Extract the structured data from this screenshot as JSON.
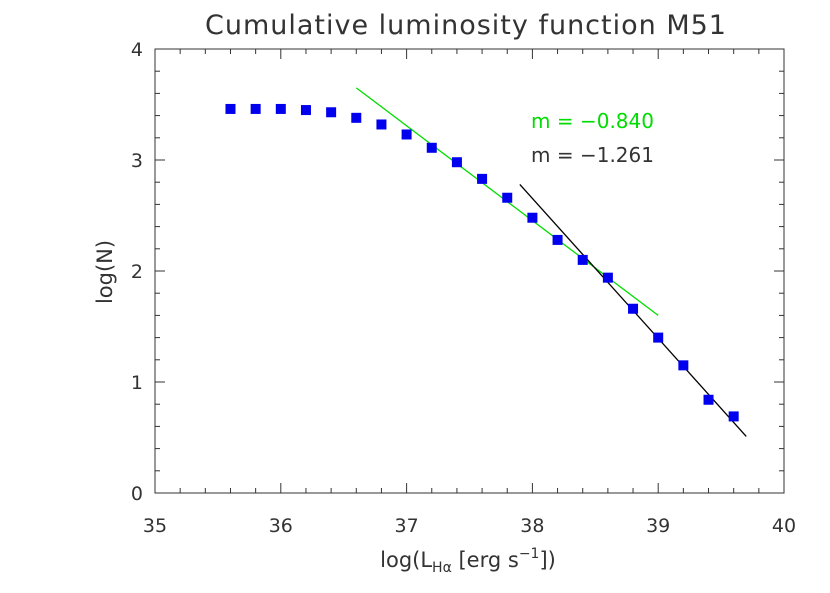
{
  "chart_data": {
    "type": "scatter",
    "title": "Cumulative luminosity function M51",
    "xlabel_parts": {
      "prefix": "log(L",
      "subscript": "Hα",
      "middle": " [erg s",
      "superscript": "−1",
      "suffix": "])"
    },
    "ylabel": "log(N)",
    "xlim": [
      35,
      40
    ],
    "ylim": [
      0,
      4
    ],
    "x_ticks": [
      "35",
      "36",
      "37",
      "38",
      "39",
      "40"
    ],
    "y_ticks": [
      "0",
      "1",
      "2",
      "3",
      "4"
    ],
    "series": [
      {
        "x": [
          35.6,
          35.8,
          36.0,
          36.2,
          36.4,
          36.6,
          36.8,
          37.0,
          37.2,
          37.4,
          37.6,
          37.8,
          38.0,
          38.2,
          38.4,
          38.6,
          38.8,
          39.0,
          39.2,
          39.4,
          39.6
        ],
        "y": [
          3.46,
          3.46,
          3.46,
          3.45,
          3.43,
          3.38,
          3.32,
          3.23,
          3.11,
          2.98,
          2.83,
          2.66,
          2.48,
          2.28,
          2.1,
          1.94,
          1.66,
          1.4,
          1.15,
          0.84,
          0.69
        ],
        "color": "#0000ee"
      }
    ],
    "fits": [
      {
        "slope_text": "m = −0.840",
        "slope": -0.84,
        "x_range": [
          36.6,
          39.0
        ],
        "y_range": [
          3.65,
          1.6
        ],
        "color": "#00dd00"
      },
      {
        "slope_text": "m = −1.261",
        "slope": -1.261,
        "x_range": [
          37.9,
          39.7
        ],
        "y_range": [
          2.78,
          0.51
        ],
        "color": "#000000"
      }
    ],
    "grid": false,
    "colors": {
      "axis": "#333333",
      "markers": "#0000ee",
      "fit_green": "#00dd00",
      "fit_black": "#000000"
    }
  }
}
